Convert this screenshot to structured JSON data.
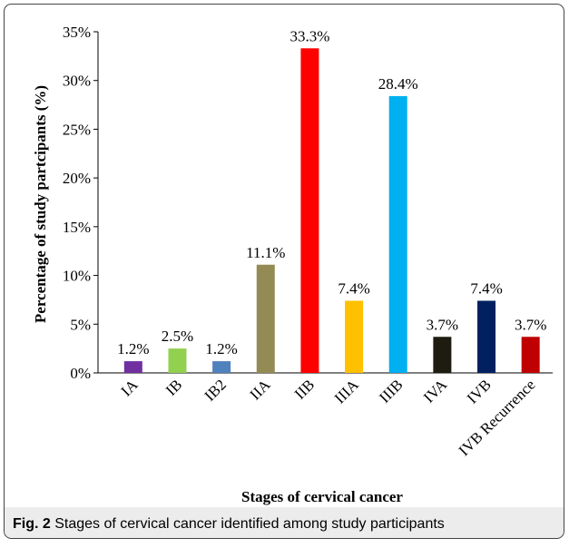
{
  "chart_data": {
    "type": "bar",
    "categories": [
      "IA",
      "IB",
      "IB2",
      "IIA",
      "IIB",
      "IIIA",
      "IIIB",
      "IVA",
      "IVB",
      "IVB Recurrence"
    ],
    "values": [
      1.2,
      2.5,
      1.2,
      11.1,
      33.3,
      7.4,
      28.4,
      3.7,
      7.4,
      3.7
    ],
    "value_labels": [
      "1.2%",
      "2.5%",
      "1.2%",
      "11.1%",
      "33.3%",
      "7.4%",
      "28.4%",
      "3.7%",
      "7.4%",
      "3.7%"
    ],
    "colors": [
      "#7030a0",
      "#92d050",
      "#4f81bd",
      "#948a54",
      "#ff0000",
      "#ffc000",
      "#00b0f0",
      "#1e1c11",
      "#002060",
      "#c00000"
    ],
    "x_label": "Stages of cervical cancer",
    "y_label": "Percentage of study partcipants (%)",
    "ylim": [
      0,
      35
    ],
    "yticks": [
      {
        "value": 0,
        "label": "0%"
      },
      {
        "value": 5,
        "label": "5%"
      },
      {
        "value": 10,
        "label": "10%"
      },
      {
        "value": 15,
        "label": "15%"
      },
      {
        "value": 20,
        "label": "20%"
      },
      {
        "value": 25,
        "label": "25%"
      },
      {
        "value": 30,
        "label": "30%"
      },
      {
        "value": 35,
        "label": "35%"
      }
    ]
  },
  "caption": {
    "label": "Fig. 2",
    "text": "Stages of cervical cancer identified among study participants"
  }
}
